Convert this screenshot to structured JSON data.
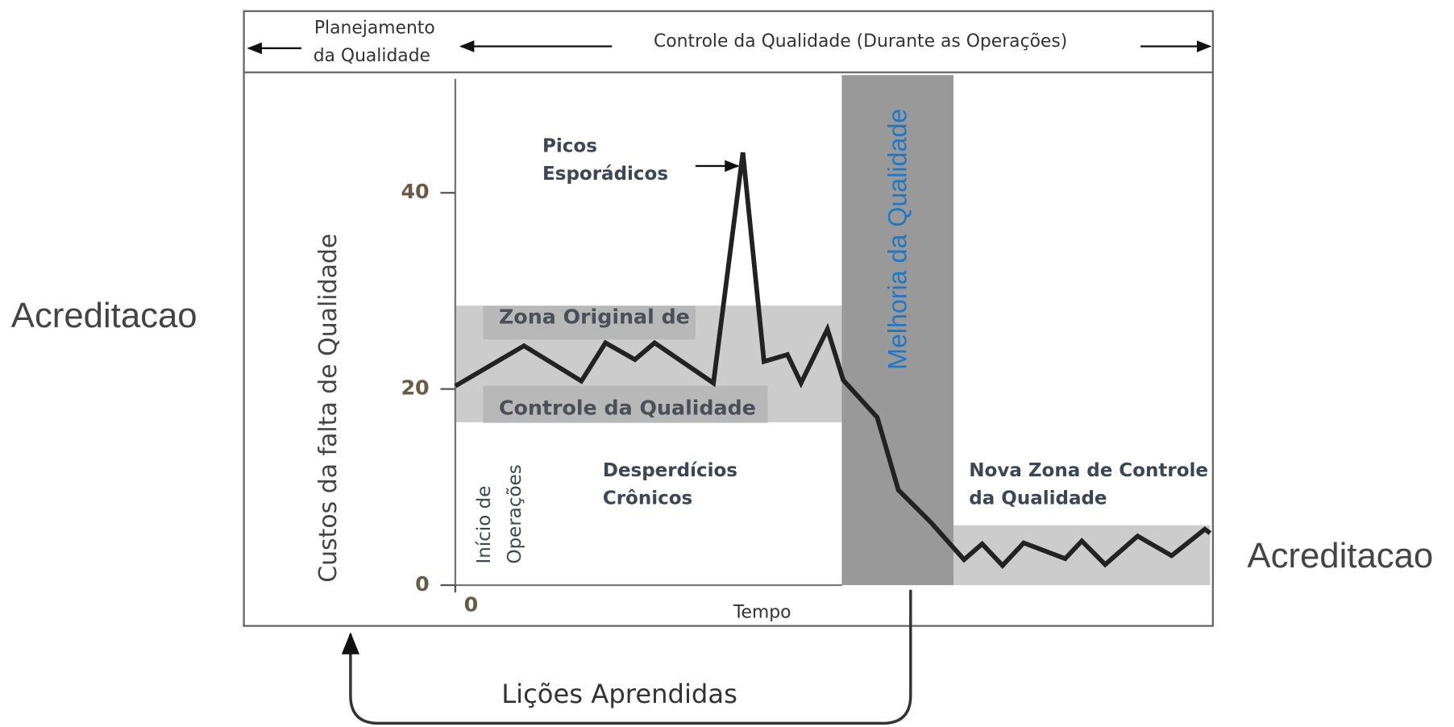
{
  "header": {
    "planning": [
      "Planejamento",
      "da Qualidade"
    ],
    "control": "Controle da Qualidade (Durante as Operações)"
  },
  "side_labels": {
    "left": "Acreditacao",
    "right": "Acreditacao"
  },
  "annotations": {
    "spikes": [
      "Picos",
      "Esporádicos"
    ],
    "original_zone": [
      "Zona Original de",
      "Controle da Qualidade"
    ],
    "start": [
      "Início de",
      "Operações"
    ],
    "chronic": [
      "Desperdícios",
      "Crônicos"
    ],
    "improvement": "Melhoria da Qualidade",
    "new_zone": [
      "Nova Zona de Controle",
      "da Qualidade"
    ],
    "lessons": "Lições Aprendidas"
  },
  "chart_data": {
    "type": "line",
    "y_label": "Custos da falta  de Qualidade",
    "x_label": "Tempo",
    "x": [
      0,
      9.1,
      16.7,
      19.9,
      23.8,
      26.4,
      34.2,
      38.1,
      40.9,
      44.0,
      45.8,
      49.3,
      51.4,
      55.9,
      58.7,
      63.0,
      67.4,
      69.8,
      72.5,
      75.3,
      80.8,
      83.0,
      86.1,
      90.4,
      94.9,
      99.3,
      100
    ],
    "values": [
      20.3,
      24.4,
      20.8,
      24.7,
      23.0,
      24.7,
      20.6,
      44.1,
      22.8,
      23.5,
      20.6,
      26.1,
      20.9,
      17.1,
      9.7,
      6.4,
      2.6,
      4.2,
      2.0,
      4.3,
      2.7,
      4.5,
      2.1,
      5.0,
      3.0,
      5.7,
      5.3
    ],
    "color": "#222222",
    "xlim": [
      0,
      100
    ],
    "ylim": [
      0,
      52
    ],
    "xticks": [
      0
    ],
    "yticks": [
      0,
      20,
      40
    ],
    "bands": [
      {
        "x": [
          0,
          51.2
        ],
        "y": [
          16.6,
          28.5
        ],
        "color": "#cccccc"
      },
      {
        "x": [
          51.2,
          66
        ],
        "y": [
          0,
          52
        ],
        "color": "#999999"
      },
      {
        "x": [
          66,
          100
        ],
        "y": [
          0,
          6.1
        ],
        "color": "#cccccc"
      }
    ]
  }
}
